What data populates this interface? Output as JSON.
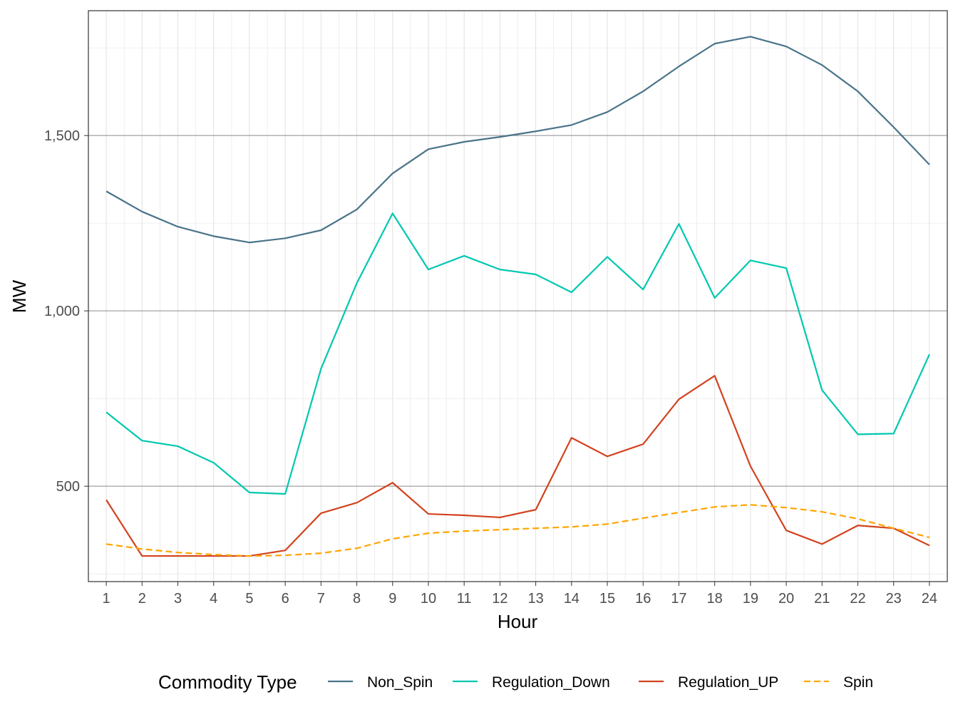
{
  "chart_data": {
    "type": "line",
    "xlabel": "Hour",
    "ylabel": "MW",
    "x": [
      1,
      2,
      3,
      4,
      5,
      6,
      7,
      8,
      9,
      10,
      11,
      12,
      13,
      14,
      15,
      16,
      17,
      18,
      19,
      20,
      21,
      22,
      23,
      24
    ],
    "xlim": [
      0.5,
      24.5
    ],
    "ylim": [
      228,
      1856
    ],
    "yticks": [
      500,
      1000,
      1500
    ],
    "ytick_labels": [
      "500",
      "1,000",
      "1,500"
    ],
    "grid": true,
    "legend": {
      "title": "Commodity Type",
      "placement": "bottom"
    },
    "series": [
      {
        "name": "Non_Spin",
        "color": "#4a7389",
        "dash": false,
        "values": [
          1341,
          1283,
          1240,
          1213,
          1195,
          1207,
          1230,
          1289,
          1392,
          1461,
          1482,
          1496,
          1512,
          1530,
          1567,
          1626,
          1697,
          1762,
          1782,
          1754,
          1701,
          1626,
          1524,
          1417
        ]
      },
      {
        "name": "Regulation_Down",
        "color": "#00c8b0",
        "dash": false,
        "values": [
          711,
          630,
          614,
          567,
          482,
          478,
          835,
          1079,
          1278,
          1118,
          1157,
          1118,
          1104,
          1053,
          1154,
          1061,
          1248,
          1037,
          1144,
          1122,
          774,
          648,
          650,
          876
        ]
      },
      {
        "name": "Regulation_UP",
        "color": "#d2431f",
        "dash": false,
        "values": [
          461,
          301,
          301,
          301,
          301,
          317,
          423,
          453,
          510,
          421,
          417,
          411,
          433,
          638,
          585,
          620,
          748,
          815,
          557,
          374,
          335,
          388,
          380,
          331
        ]
      },
      {
        "name": "Spin",
        "color": "#ffa500",
        "dash": true,
        "values": [
          335,
          321,
          311,
          305,
          301,
          303,
          309,
          323,
          350,
          366,
          372,
          376,
          380,
          384,
          392,
          409,
          425,
          441,
          447,
          439,
          427,
          407,
          380,
          354
        ]
      }
    ]
  }
}
